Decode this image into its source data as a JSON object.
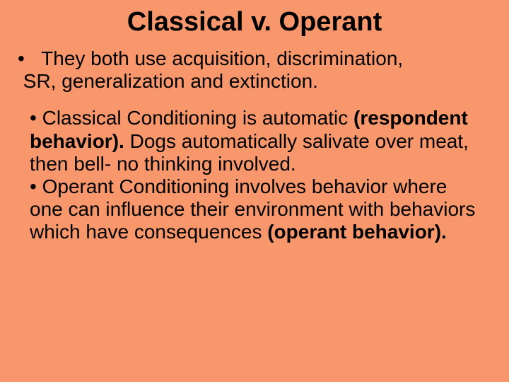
{
  "background_color": "#f7976b",
  "text_color": "#000000",
  "font_family": "Arial",
  "title": {
    "text": "Classical v. Operant",
    "fontsize": 38,
    "bold": true,
    "align": "center"
  },
  "section1": {
    "fontsize": 28,
    "bullet_char": "•",
    "text_line1": "They both use acquisition, discrimination,",
    "text_line2": "SR, generalization and extinction."
  },
  "section2": {
    "fontsize": 28,
    "items": [
      {
        "bullet_char": "•",
        "runs": [
          {
            "text": "Classical Conditioning is automatic ",
            "bold": false
          },
          {
            "text": "(respondent behavior).",
            "bold": true
          },
          {
            "text": "  Dogs automatically salivate over meat, then bell- no thinking involved.",
            "bold": false
          }
        ]
      },
      {
        "bullet_char": "•",
        "runs": [
          {
            "text": "Operant Conditioning involves behavior where one can influence their environment with behaviors which have consequences ",
            "bold": false
          },
          {
            "text": "(operant behavior).",
            "bold": true
          }
        ]
      }
    ]
  }
}
